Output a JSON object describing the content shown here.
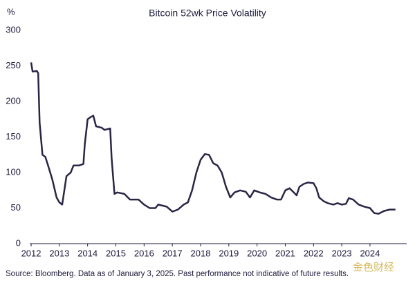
{
  "chart_data": {
    "type": "line",
    "title": "Bitcoin 52wk Price Volatility",
    "y_label": "%",
    "source": "Source: Bloomberg. Data as of January 3, 2025. Past performance not indicative of future results.",
    "watermark": "金色财经",
    "color": "#2a2545",
    "xlim": [
      2011.95,
      2025.3
    ],
    "xticks": [
      2012,
      2013,
      2014,
      2015,
      2016,
      2017,
      2018,
      2019,
      2020,
      2021,
      2022,
      2023,
      2024
    ],
    "ylim": [
      0,
      300
    ],
    "yticks": [
      0,
      50,
      100,
      150,
      200,
      250,
      300
    ],
    "x": [
      2012.0,
      2012.05,
      2012.2,
      2012.25,
      2012.3,
      2012.4,
      2012.5,
      2012.6,
      2012.75,
      2012.9,
      2013.0,
      2013.1,
      2013.25,
      2013.4,
      2013.5,
      2013.7,
      2013.85,
      2013.9,
      2014.0,
      2014.1,
      2014.2,
      2014.3,
      2014.5,
      2014.6,
      2014.8,
      2014.85,
      2014.95,
      2015.05,
      2015.3,
      2015.5,
      2015.8,
      2016.0,
      2016.2,
      2016.4,
      2016.5,
      2016.8,
      2017.0,
      2017.2,
      2017.4,
      2017.55,
      2017.7,
      2017.85,
      2018.0,
      2018.15,
      2018.3,
      2018.45,
      2018.6,
      2018.75,
      2018.9,
      2019.05,
      2019.2,
      2019.4,
      2019.6,
      2019.75,
      2019.9,
      2020.1,
      2020.3,
      2020.5,
      2020.7,
      2020.85,
      2021.0,
      2021.15,
      2021.3,
      2021.4,
      2021.5,
      2021.65,
      2021.8,
      2022.0,
      2022.1,
      2022.2,
      2022.35,
      2022.5,
      2022.7,
      2022.85,
      2023.0,
      2023.15,
      2023.25,
      2023.4,
      2023.6,
      2023.8,
      2024.0,
      2024.15,
      2024.3,
      2024.5,
      2024.7,
      2024.9
    ],
    "values": [
      255,
      242,
      243,
      240,
      170,
      125,
      122,
      110,
      90,
      65,
      58,
      55,
      95,
      100,
      110,
      110,
      112,
      140,
      175,
      178,
      180,
      165,
      163,
      160,
      162,
      120,
      70,
      72,
      70,
      62,
      62,
      55,
      50,
      50,
      55,
      52,
      45,
      48,
      55,
      58,
      75,
      100,
      118,
      126,
      125,
      113,
      110,
      100,
      80,
      65,
      72,
      75,
      73,
      65,
      75,
      72,
      70,
      65,
      62,
      62,
      75,
      78,
      72,
      68,
      80,
      84,
      86,
      85,
      78,
      65,
      60,
      57,
      55,
      57,
      55,
      56,
      64,
      62,
      55,
      52,
      50,
      43,
      42,
      46,
      48,
      48
    ]
  }
}
